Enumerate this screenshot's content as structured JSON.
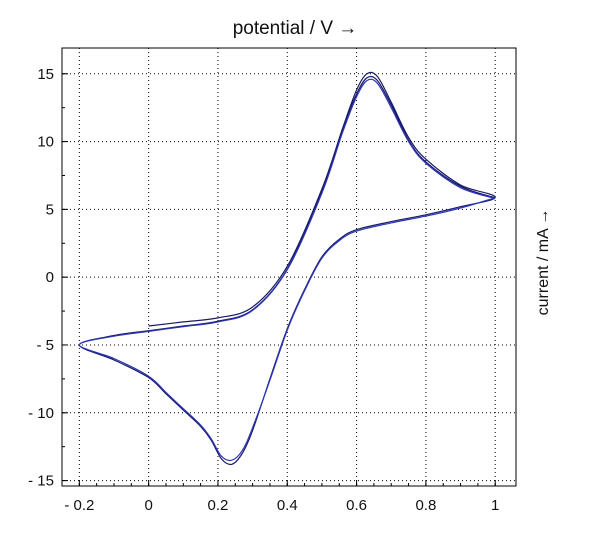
{
  "chart_data": {
    "type": "line",
    "title": "potential / V →",
    "xlabel": "",
    "ylabel": "current / mA →",
    "xlim": [
      -0.25,
      1.06
    ],
    "ylim": [
      -15.4,
      16.9
    ],
    "x_ticks": [
      -0.2,
      0,
      0.2,
      0.4,
      0.6,
      0.8,
      1
    ],
    "x_tick_labels": [
      "- 0.2",
      "0",
      "0.2",
      "0.4",
      "0.6",
      "0.8",
      "1"
    ],
    "y_ticks": [
      -15,
      -10,
      -5,
      0,
      5,
      10,
      15
    ],
    "y_tick_labels": [
      "- 15",
      "- 10",
      "- 5",
      "0",
      "5",
      "10",
      "15"
    ],
    "grid": true,
    "grid_style": "dotted",
    "colors": {
      "trace_dark": "#1a1a66",
      "trace_blue": "#2b35b8",
      "axis": "#000000"
    },
    "series": [
      {
        "color": "#1a1a66",
        "points": [
          [
            0.0,
            -3.6
          ],
          [
            0.1,
            -3.3
          ],
          [
            0.2,
            -3.0
          ],
          [
            0.3,
            -2.2
          ],
          [
            0.4,
            0.8
          ],
          [
            0.5,
            6.5
          ],
          [
            0.56,
            11.0
          ],
          [
            0.6,
            13.8
          ],
          [
            0.63,
            15.0
          ],
          [
            0.66,
            14.8
          ],
          [
            0.7,
            12.9
          ],
          [
            0.75,
            10.3
          ],
          [
            0.8,
            8.7
          ],
          [
            0.9,
            6.8
          ],
          [
            1.0,
            5.9
          ],
          [
            0.9,
            5.2
          ],
          [
            0.8,
            4.6
          ],
          [
            0.7,
            4.1
          ],
          [
            0.6,
            3.5
          ],
          [
            0.55,
            2.8
          ],
          [
            0.5,
            1.5
          ],
          [
            0.45,
            -0.9
          ],
          [
            0.4,
            -3.8
          ],
          [
            0.35,
            -7.5
          ],
          [
            0.3,
            -11.3
          ],
          [
            0.27,
            -13.0
          ],
          [
            0.24,
            -13.8
          ],
          [
            0.21,
            -13.4
          ],
          [
            0.18,
            -12.0
          ],
          [
            0.15,
            -11.0
          ],
          [
            0.1,
            -9.8
          ],
          [
            0.05,
            -8.6
          ],
          [
            0.0,
            -7.4
          ],
          [
            -0.1,
            -6.1
          ],
          [
            -0.2,
            -5.0
          ],
          [
            -0.1,
            -4.3
          ],
          [
            0.0,
            -3.95
          ],
          [
            0.1,
            -3.6
          ],
          [
            0.2,
            -3.25
          ],
          [
            0.3,
            -2.4
          ],
          [
            0.4,
            0.6
          ],
          [
            0.5,
            6.3
          ],
          [
            0.56,
            10.9
          ],
          [
            0.6,
            13.5
          ],
          [
            0.63,
            14.7
          ],
          [
            0.66,
            14.5
          ],
          [
            0.7,
            12.7
          ],
          [
            0.75,
            10.1
          ],
          [
            0.8,
            8.5
          ],
          [
            0.9,
            6.7
          ],
          [
            1.0,
            5.85
          ]
        ]
      },
      {
        "color": "#2b35b8",
        "points": [
          [
            1.0,
            5.85
          ],
          [
            0.9,
            5.1
          ],
          [
            0.8,
            4.5
          ],
          [
            0.7,
            4.0
          ],
          [
            0.6,
            3.4
          ],
          [
            0.55,
            2.7
          ],
          [
            0.5,
            1.4
          ],
          [
            0.45,
            -1.0
          ],
          [
            0.4,
            -3.9
          ],
          [
            0.35,
            -7.6
          ],
          [
            0.3,
            -11.1
          ],
          [
            0.27,
            -12.8
          ],
          [
            0.24,
            -13.5
          ],
          [
            0.21,
            -13.2
          ],
          [
            0.18,
            -11.9
          ],
          [
            0.15,
            -10.9
          ],
          [
            0.1,
            -9.7
          ],
          [
            0.05,
            -8.5
          ],
          [
            0.0,
            -7.3
          ],
          [
            -0.1,
            -6.0
          ],
          [
            -0.2,
            -5.0
          ],
          [
            -0.1,
            -4.35
          ],
          [
            0.0,
            -4.0
          ],
          [
            0.1,
            -3.65
          ],
          [
            0.2,
            -3.3
          ],
          [
            0.3,
            -2.45
          ],
          [
            0.4,
            0.55
          ],
          [
            0.5,
            6.2
          ],
          [
            0.56,
            10.7
          ],
          [
            0.6,
            13.3
          ],
          [
            0.63,
            14.5
          ],
          [
            0.66,
            14.3
          ],
          [
            0.7,
            12.5
          ],
          [
            0.75,
            10.0
          ],
          [
            0.8,
            8.4
          ],
          [
            0.9,
            6.6
          ],
          [
            1.0,
            5.8
          ]
        ]
      }
    ]
  }
}
